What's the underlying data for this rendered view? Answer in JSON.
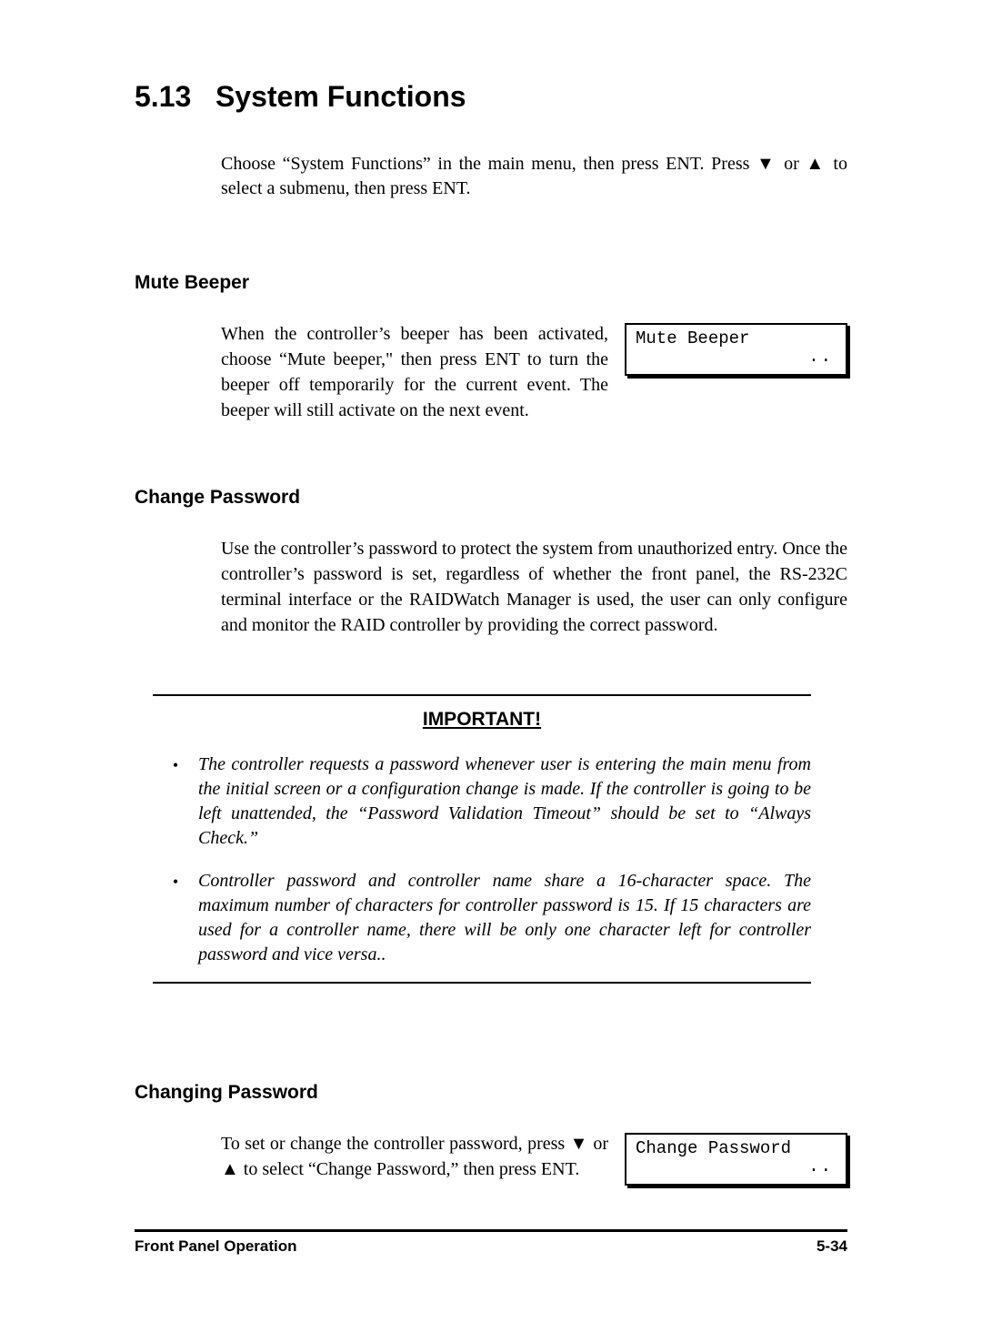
{
  "section": {
    "number": "5.13",
    "title": "System Functions",
    "intro": "Choose “System Functions” in the main menu, then press ENT. Press ▼ or ▲ to select a submenu, then press ENT."
  },
  "mute": {
    "heading": "Mute Beeper",
    "body": "When the controller’s beeper has been activated, choose “Mute beeper,\" then press ENT to turn the beeper off temporarily for the current event. The beeper will still activate on the next event.",
    "lcd_line1": "Mute Beeper",
    "lcd_dots": ".."
  },
  "change": {
    "heading": "Change Password",
    "body": "Use the controller’s password to protect the system from unauthorized entry.  Once the controller’s password is set, regardless of whether the front panel, the RS-232C terminal interface or the RAIDWatch Manager is used, the user can only configure and monitor the RAID controller by providing the correct password."
  },
  "important": {
    "title": "IMPORTANT!",
    "bullets": [
      "The controller requests a password whenever user is entering the main menu from the initial screen or a configuration change is made.  If the controller is going to be left unattended, the “Password Validation Timeout” should be set to “Always Check.”",
      "Controller password and controller name share a 16-character space.  The maximum number of characters for controller password is 15.  If 15 characters are used for a controller name, there will be only one character left for controller password and vice versa.."
    ]
  },
  "changing": {
    "heading": "Changing Password",
    "body": "To set or change the controller password, press ▼ or ▲ to select “Change Password,” then press ENT.",
    "lcd_line1": "Change Password",
    "lcd_dots": ".."
  },
  "footer": {
    "left": "Front Panel Operation",
    "right": "5-34"
  }
}
